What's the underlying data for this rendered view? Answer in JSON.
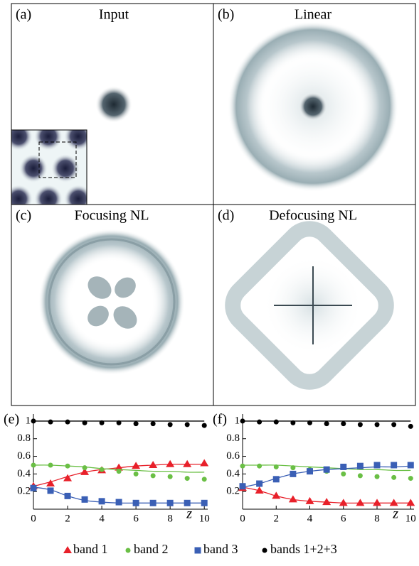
{
  "panels": [
    {
      "label": "(a)",
      "title": "Input"
    },
    {
      "label": "(b)",
      "title": "Linear"
    },
    {
      "label": "(c)",
      "title": "Focusing NL"
    },
    {
      "label": "(d)",
      "title": "Defocusing NL"
    }
  ],
  "chart_data": [
    {
      "type": "line",
      "panel_label": "(e)",
      "x_label": "z",
      "x": [
        0,
        1,
        2,
        3,
        4,
        5,
        6,
        7,
        8,
        9,
        10
      ],
      "xlim": [
        0,
        10.2
      ],
      "xticks": [
        0,
        2,
        4,
        6,
        8,
        10
      ],
      "ylim": [
        0,
        1.08
      ],
      "yticks": [
        0.2,
        0.4,
        0.6,
        0.8,
        1
      ],
      "series": [
        {
          "name": "band 1",
          "color": "#e8202a",
          "marker": "triangle",
          "values": [
            0.26,
            0.29,
            0.35,
            0.42,
            0.44,
            0.47,
            0.49,
            0.5,
            0.51,
            0.51,
            0.52
          ],
          "curve": [
            0.26,
            0.31,
            0.37,
            0.42,
            0.45,
            0.47,
            0.49,
            0.5,
            0.51,
            0.51,
            0.51
          ]
        },
        {
          "name": "band 2",
          "color": "#6abf45",
          "marker": "circle",
          "values": [
            0.5,
            0.5,
            0.49,
            0.47,
            0.45,
            0.43,
            0.4,
            0.38,
            0.37,
            0.35,
            0.34
          ],
          "curve": [
            0.5,
            0.5,
            0.49,
            0.48,
            0.46,
            0.45,
            0.44,
            0.43,
            0.43,
            0.42,
            0.42
          ]
        },
        {
          "name": "band 3",
          "color": "#3a5fb5",
          "marker": "square",
          "values": [
            0.24,
            0.21,
            0.15,
            0.11,
            0.09,
            0.08,
            0.07,
            0.07,
            0.07,
            0.07,
            0.07
          ],
          "curve": [
            0.25,
            0.22,
            0.15,
            0.1,
            0.08,
            0.07,
            0.07,
            0.07,
            0.07,
            0.07,
            0.07
          ]
        },
        {
          "name": "bands 1+2+3",
          "color": "#000000",
          "marker": "circle",
          "values": [
            1.0,
            0.99,
            0.99,
            0.98,
            0.98,
            0.98,
            0.97,
            0.97,
            0.96,
            0.96,
            0.95
          ],
          "curve": [
            1,
            1,
            1,
            1,
            1,
            1,
            1,
            1,
            1,
            1,
            1
          ]
        }
      ]
    },
    {
      "type": "line",
      "panel_label": "(f)",
      "x_label": "z",
      "x": [
        0,
        1,
        2,
        3,
        4,
        5,
        6,
        7,
        8,
        9,
        10
      ],
      "xlim": [
        0,
        10.2
      ],
      "xticks": [
        0,
        2,
        4,
        6,
        8,
        10
      ],
      "ylim": [
        0,
        1.08
      ],
      "yticks": [
        0.2,
        0.4,
        0.6,
        0.8,
        1
      ],
      "series": [
        {
          "name": "band 1",
          "color": "#e8202a",
          "marker": "triangle",
          "values": [
            0.24,
            0.21,
            0.15,
            0.11,
            0.09,
            0.08,
            0.07,
            0.07,
            0.07,
            0.07,
            0.07
          ],
          "curve": [
            0.25,
            0.21,
            0.15,
            0.11,
            0.09,
            0.08,
            0.07,
            0.07,
            0.07,
            0.07,
            0.07
          ]
        },
        {
          "name": "band 2",
          "color": "#6abf45",
          "marker": "circle",
          "values": [
            0.49,
            0.49,
            0.48,
            0.47,
            0.45,
            0.43,
            0.4,
            0.38,
            0.37,
            0.36,
            0.35
          ],
          "curve": [
            0.5,
            0.5,
            0.5,
            0.49,
            0.48,
            0.47,
            0.46,
            0.45,
            0.45,
            0.44,
            0.44
          ]
        },
        {
          "name": "band 3",
          "color": "#3a5fb5",
          "marker": "square",
          "values": [
            0.26,
            0.29,
            0.34,
            0.4,
            0.43,
            0.45,
            0.48,
            0.49,
            0.5,
            0.5,
            0.5
          ],
          "curve": [
            0.25,
            0.29,
            0.35,
            0.4,
            0.43,
            0.45,
            0.46,
            0.47,
            0.48,
            0.48,
            0.49
          ]
        },
        {
          "name": "bands 1+2+3",
          "color": "#000000",
          "marker": "circle",
          "values": [
            1.0,
            0.99,
            0.99,
            0.98,
            0.98,
            0.97,
            0.97,
            0.96,
            0.96,
            0.96,
            0.94
          ],
          "curve": [
            1,
            1,
            1,
            1,
            1,
            1,
            1,
            1,
            1,
            1,
            1
          ]
        }
      ]
    }
  ]
}
